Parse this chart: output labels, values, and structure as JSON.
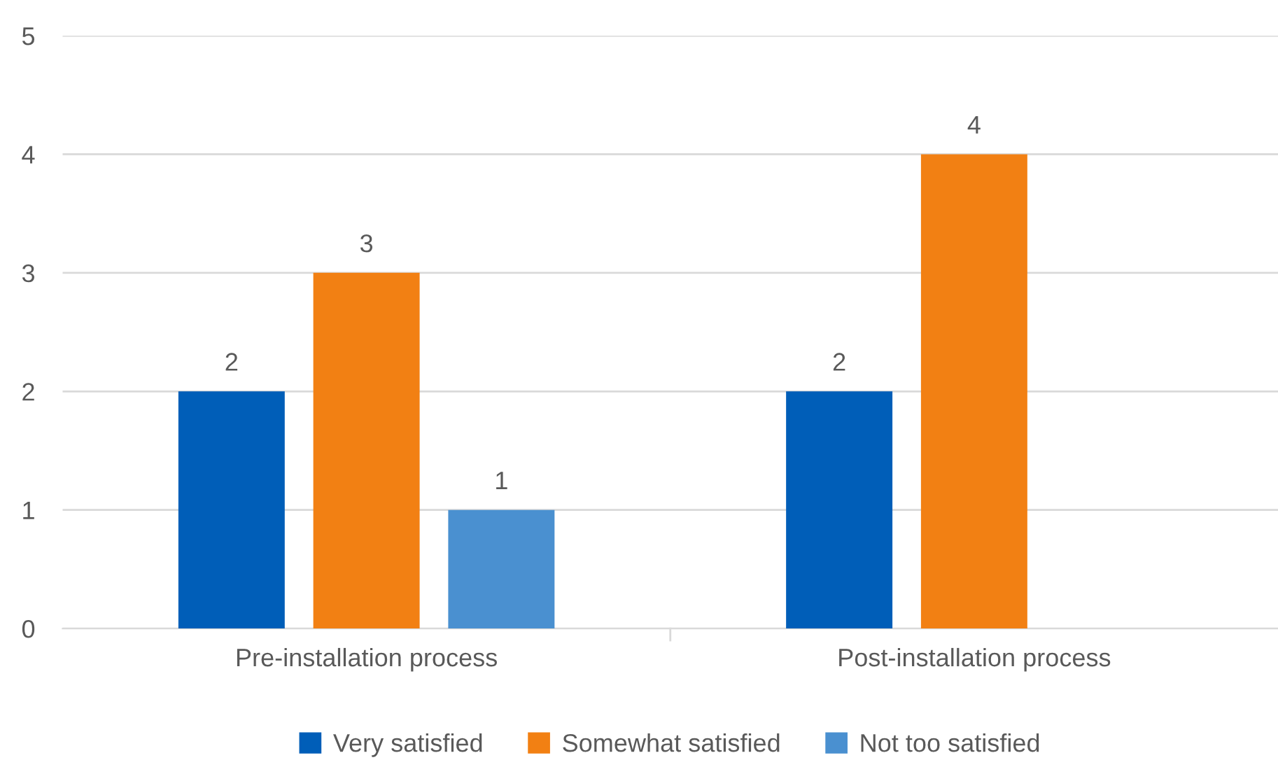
{
  "chart_data": {
    "type": "bar",
    "categories": [
      "Pre-installation process",
      "Post-installation process"
    ],
    "series": [
      {
        "name": "Very satisfied",
        "color": "#005eb8",
        "values": [
          2,
          2
        ]
      },
      {
        "name": "Somewhat satisfied",
        "color": "#f28013",
        "values": [
          3,
          4
        ]
      },
      {
        "name": "Not too satisfied",
        "color": "#4a90d0",
        "values": [
          1,
          null
        ]
      }
    ],
    "ylim": [
      0,
      5
    ],
    "yticks": [
      0,
      1,
      2,
      3,
      4,
      5
    ],
    "grid": "y",
    "legend": "bottom",
    "data_labels": true
  }
}
